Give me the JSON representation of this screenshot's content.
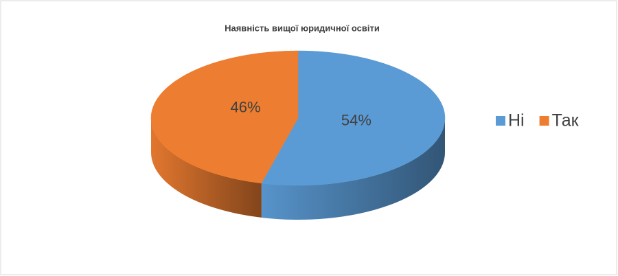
{
  "chart_data": {
    "type": "pie",
    "title": "Наявність вищої юридичної освіти",
    "categories": [
      "Ні",
      "Так"
    ],
    "values": [
      54,
      46
    ],
    "value_labels": [
      "54%",
      "46%"
    ],
    "colors": [
      "#5b9bd5",
      "#ed7d31"
    ],
    "legend": "right"
  }
}
